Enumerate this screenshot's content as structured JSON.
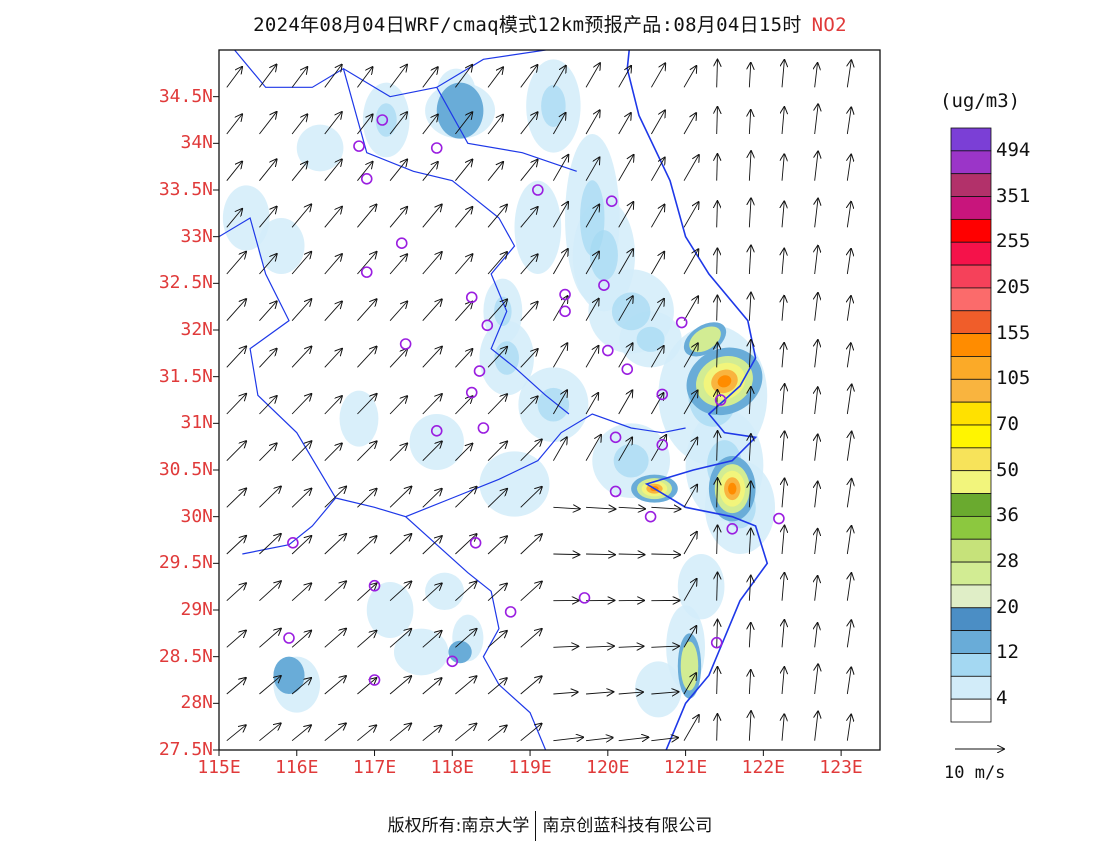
{
  "title": "2024年08月04日WRF/cmaq模式12km预报产品:08月04日15时",
  "species": "NO2",
  "y_axis_labels": [
    "34.5N",
    "34N",
    "33.5N",
    "33N",
    "32.5N",
    "32N",
    "31.5N",
    "31N",
    "30.5N",
    "30N",
    "29.5N",
    "29N",
    "28.5N",
    "28N",
    "27.5N"
  ],
  "x_axis_labels": [
    "115E",
    "116E",
    "117E",
    "118E",
    "119E",
    "120E",
    "121E",
    "122E",
    "123E"
  ],
  "colorbar": {
    "unit": "(ug/m3)",
    "labels": [
      "494",
      "351",
      "255",
      "205",
      "155",
      "105",
      "70",
      "50",
      "36",
      "28",
      "20",
      "12",
      "4"
    ],
    "colors_top_to_bottom": [
      "#7b3fd6",
      "#9b35c8",
      "#b2316a",
      "#c8157c",
      "#ff0000",
      "#f5124a",
      "#f5415a",
      "#fb6b6b",
      "#f05d2a",
      "#ff8c00",
      "#fbaa28",
      "#f9b43f",
      "#ffe100",
      "#fff500",
      "#f7e35a",
      "#f2f57c",
      "#6aaa2f",
      "#8cc83f",
      "#c6e27a",
      "#d2ec93",
      "#e0eec7",
      "#4b8ec5",
      "#69acd8",
      "#a4d8f2",
      "#d2ecf9",
      "#ffffff"
    ]
  },
  "wind_reference": "10 m/s",
  "footer": {
    "left": "版权所有:南京大学",
    "right": "南京创蓝科技有限公司"
  },
  "colors": {
    "title_accent": "#e03a3a",
    "boundary": "#1e38e8",
    "station_marker": "#9a1ee0",
    "arrow": "#111111"
  },
  "map_data": {
    "lon_range": [
      115,
      123.5
    ],
    "lat_range": [
      27.5,
      35
    ],
    "stations": [
      [
        117.1,
        34.25
      ],
      [
        116.8,
        33.97
      ],
      [
        117.8,
        33.95
      ],
      [
        116.9,
        33.62
      ],
      [
        119.1,
        33.5
      ],
      [
        120.05,
        33.38
      ],
      [
        117.35,
        32.93
      ],
      [
        116.9,
        32.62
      ],
      [
        118.25,
        32.35
      ],
      [
        119.45,
        32.38
      ],
      [
        119.95,
        32.48
      ],
      [
        119.45,
        32.2
      ],
      [
        118.45,
        32.05
      ],
      [
        120.95,
        32.08
      ],
      [
        117.4,
        31.85
      ],
      [
        120.0,
        31.78
      ],
      [
        120.25,
        31.58
      ],
      [
        118.35,
        31.56
      ],
      [
        118.25,
        31.33
      ],
      [
        120.7,
        31.31
      ],
      [
        121.45,
        31.25
      ],
      [
        117.8,
        30.92
      ],
      [
        118.4,
        30.95
      ],
      [
        120.1,
        30.85
      ],
      [
        120.7,
        30.77
      ],
      [
        120.1,
        30.27
      ],
      [
        120.55,
        30.0
      ],
      [
        121.6,
        29.87
      ],
      [
        122.2,
        29.98
      ],
      [
        115.95,
        29.72
      ],
      [
        118.3,
        29.72
      ],
      [
        117.0,
        29.26
      ],
      [
        118.75,
        28.98
      ],
      [
        119.7,
        29.13
      ],
      [
        121.4,
        28.65
      ],
      [
        115.9,
        28.7
      ],
      [
        118.0,
        28.45
      ],
      [
        117.0,
        28.25
      ]
    ],
    "hotspots": [
      [
        121.5,
        31.45,
        0.5,
        0.35,
        -0.6
      ],
      [
        121.6,
        30.3,
        0.3,
        0.35,
        0
      ],
      [
        120.6,
        30.3,
        0.3,
        0.15,
        0
      ],
      [
        121.25,
        31.9,
        0.3,
        0.15,
        -0.8
      ],
      [
        121.05,
        28.4,
        0.15,
        0.35,
        0
      ],
      [
        118.1,
        28.55,
        0.15,
        0.12,
        0
      ],
      [
        115.9,
        28.3,
        0.2,
        0.2,
        0
      ],
      [
        118.1,
        34.35,
        0.3,
        0.3,
        0
      ]
    ]
  }
}
